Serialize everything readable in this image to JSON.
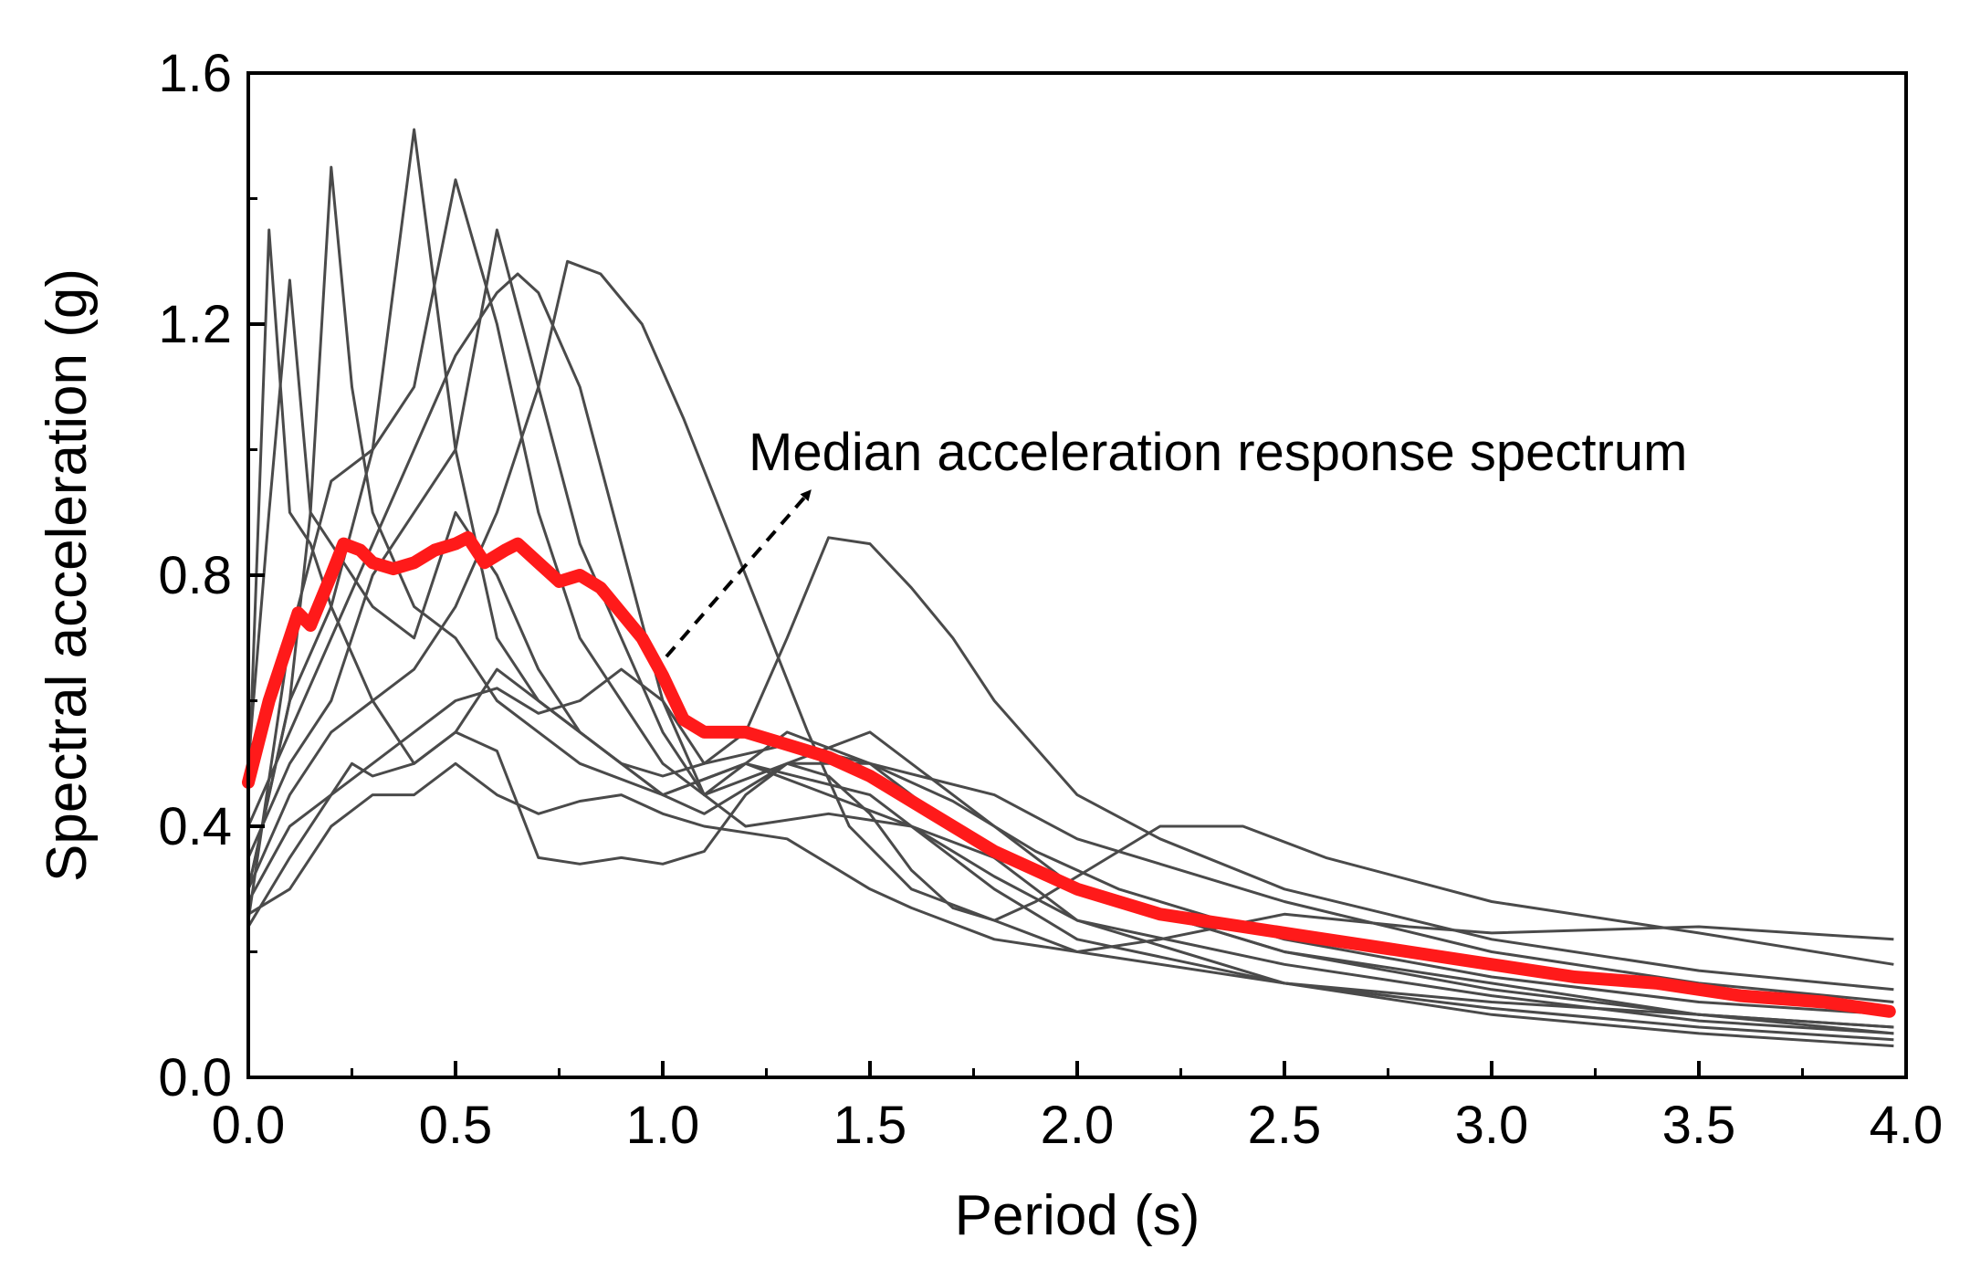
{
  "chart_data": {
    "type": "line",
    "xlabel": "Period (s)",
    "ylabel": "Spectral acceleration (g)",
    "xlim": [
      0,
      4
    ],
    "ylim": [
      0,
      1.6
    ],
    "xticks": [
      "0.0",
      "0.5",
      "1.0",
      "1.5",
      "2.0",
      "2.5",
      "3.0",
      "3.5",
      "4.0"
    ],
    "yticks": [
      "0.0",
      "0.4",
      "0.8",
      "1.2",
      "1.6"
    ],
    "grid": false,
    "annotation": {
      "text": "Median acceleration response spectrum",
      "arrow_from": [
        1.0,
        0.65
      ],
      "arrow_to": [
        1.35,
        0.93
      ]
    },
    "colors": {
      "records": "#4a4a4a",
      "median": "#ff1a1a"
    },
    "series": [
      {
        "values": [
          [
            0.0,
            0.45
          ],
          [
            0.05,
            1.35
          ],
          [
            0.1,
            0.9
          ],
          [
            0.15,
            0.85
          ],
          [
            0.2,
            0.75
          ],
          [
            0.3,
            0.6
          ],
          [
            0.4,
            0.5
          ],
          [
            0.5,
            0.55
          ],
          [
            0.6,
            0.65
          ],
          [
            0.7,
            0.6
          ],
          [
            0.8,
            0.55
          ],
          [
            0.9,
            0.5
          ],
          [
            1.0,
            0.45
          ],
          [
            1.2,
            0.5
          ],
          [
            1.4,
            0.45
          ],
          [
            1.6,
            0.4
          ],
          [
            1.8,
            0.32
          ],
          [
            2.0,
            0.25
          ],
          [
            2.5,
            0.15
          ],
          [
            3.0,
            0.11
          ],
          [
            3.5,
            0.08
          ],
          [
            3.97,
            0.06
          ]
        ]
      },
      {
        "values": [
          [
            0.0,
            0.5
          ],
          [
            0.05,
            0.9
          ],
          [
            0.1,
            1.27
          ],
          [
            0.15,
            0.9
          ],
          [
            0.2,
            1.45
          ],
          [
            0.25,
            1.1
          ],
          [
            0.3,
            0.9
          ],
          [
            0.4,
            0.75
          ],
          [
            0.5,
            0.7
          ],
          [
            0.6,
            0.6
          ],
          [
            0.7,
            0.55
          ],
          [
            0.8,
            0.5
          ],
          [
            1.0,
            0.45
          ],
          [
            1.2,
            0.5
          ],
          [
            1.5,
            0.45
          ],
          [
            1.8,
            0.3
          ],
          [
            2.0,
            0.22
          ],
          [
            2.5,
            0.15
          ],
          [
            3.0,
            0.1
          ],
          [
            3.5,
            0.07
          ],
          [
            3.97,
            0.05
          ]
        ]
      },
      {
        "values": [
          [
            0.0,
            0.3
          ],
          [
            0.1,
            0.6
          ],
          [
            0.2,
            0.75
          ],
          [
            0.3,
            1.0
          ],
          [
            0.4,
            1.51
          ],
          [
            0.5,
            1.0
          ],
          [
            0.6,
            0.7
          ],
          [
            0.7,
            0.6
          ],
          [
            0.8,
            0.55
          ],
          [
            0.9,
            0.5
          ],
          [
            1.0,
            0.45
          ],
          [
            1.1,
            0.42
          ],
          [
            1.3,
            0.5
          ],
          [
            1.5,
            0.55
          ],
          [
            1.7,
            0.45
          ],
          [
            2.0,
            0.3
          ],
          [
            2.5,
            0.2
          ],
          [
            3.0,
            0.14
          ],
          [
            3.5,
            0.1
          ],
          [
            3.97,
            0.07
          ]
        ]
      },
      {
        "values": [
          [
            0.0,
            0.25
          ],
          [
            0.1,
            0.7
          ],
          [
            0.2,
            0.95
          ],
          [
            0.3,
            1.0
          ],
          [
            0.4,
            1.1
          ],
          [
            0.5,
            1.43
          ],
          [
            0.6,
            1.2
          ],
          [
            0.7,
            0.9
          ],
          [
            0.8,
            0.7
          ],
          [
            0.9,
            0.6
          ],
          [
            1.0,
            0.5
          ],
          [
            1.1,
            0.45
          ],
          [
            1.3,
            0.55
          ],
          [
            1.5,
            0.5
          ],
          [
            1.8,
            0.35
          ],
          [
            2.0,
            0.3
          ],
          [
            2.5,
            0.2
          ],
          [
            3.0,
            0.15
          ],
          [
            3.5,
            0.1
          ],
          [
            3.97,
            0.08
          ]
        ]
      },
      {
        "values": [
          [
            0.0,
            0.35
          ],
          [
            0.1,
            0.5
          ],
          [
            0.2,
            0.6
          ],
          [
            0.3,
            0.8
          ],
          [
            0.4,
            0.9
          ],
          [
            0.5,
            1.0
          ],
          [
            0.6,
            1.35
          ],
          [
            0.7,
            1.1
          ],
          [
            0.8,
            0.85
          ],
          [
            0.9,
            0.7
          ],
          [
            1.0,
            0.55
          ],
          [
            1.1,
            0.45
          ],
          [
            1.2,
            0.4
          ],
          [
            1.4,
            0.42
          ],
          [
            1.6,
            0.4
          ],
          [
            1.8,
            0.35
          ],
          [
            2.0,
            0.25
          ],
          [
            2.5,
            0.18
          ],
          [
            3.0,
            0.13
          ],
          [
            3.5,
            0.09
          ],
          [
            3.97,
            0.07
          ]
        ]
      },
      {
        "values": [
          [
            0.0,
            0.4
          ],
          [
            0.1,
            0.55
          ],
          [
            0.2,
            0.7
          ],
          [
            0.3,
            0.85
          ],
          [
            0.4,
            1.0
          ],
          [
            0.5,
            1.15
          ],
          [
            0.6,
            1.25
          ],
          [
            0.65,
            1.28
          ],
          [
            0.7,
            1.25
          ],
          [
            0.8,
            1.1
          ],
          [
            0.9,
            0.85
          ],
          [
            1.0,
            0.6
          ],
          [
            1.1,
            0.45
          ],
          [
            1.3,
            0.5
          ],
          [
            1.5,
            0.5
          ],
          [
            1.8,
            0.45
          ],
          [
            2.0,
            0.38
          ],
          [
            2.5,
            0.28
          ],
          [
            3.0,
            0.2
          ],
          [
            3.5,
            0.15
          ],
          [
            3.97,
            0.12
          ]
        ]
      },
      {
        "values": [
          [
            0.0,
            0.3
          ],
          [
            0.1,
            0.45
          ],
          [
            0.2,
            0.55
          ],
          [
            0.3,
            0.6
          ],
          [
            0.4,
            0.65
          ],
          [
            0.5,
            0.75
          ],
          [
            0.6,
            0.9
          ],
          [
            0.7,
            1.1
          ],
          [
            0.77,
            1.3
          ],
          [
            0.85,
            1.28
          ],
          [
            0.95,
            1.2
          ],
          [
            1.05,
            1.05
          ],
          [
            1.2,
            0.8
          ],
          [
            1.35,
            0.55
          ],
          [
            1.45,
            0.4
          ],
          [
            1.6,
            0.3
          ],
          [
            1.8,
            0.25
          ],
          [
            2.0,
            0.2
          ],
          [
            2.5,
            0.15
          ],
          [
            3.0,
            0.12
          ],
          [
            3.5,
            0.1
          ],
          [
            3.97,
            0.08
          ]
        ]
      },
      {
        "values": [
          [
            0.0,
            0.28
          ],
          [
            0.1,
            0.4
          ],
          [
            0.2,
            0.45
          ],
          [
            0.3,
            0.5
          ],
          [
            0.4,
            0.55
          ],
          [
            0.5,
            0.6
          ],
          [
            0.6,
            0.62
          ],
          [
            0.7,
            0.58
          ],
          [
            0.8,
            0.6
          ],
          [
            0.9,
            0.65
          ],
          [
            1.0,
            0.6
          ],
          [
            1.1,
            0.5
          ],
          [
            1.2,
            0.55
          ],
          [
            1.3,
            0.7
          ],
          [
            1.4,
            0.86
          ],
          [
            1.5,
            0.85
          ],
          [
            1.6,
            0.78
          ],
          [
            1.7,
            0.7
          ],
          [
            1.8,
            0.6
          ],
          [
            2.0,
            0.45
          ],
          [
            2.2,
            0.38
          ],
          [
            2.5,
            0.3
          ],
          [
            3.0,
            0.22
          ],
          [
            3.5,
            0.17
          ],
          [
            3.97,
            0.14
          ]
        ]
      },
      {
        "values": [
          [
            0.0,
            0.24
          ],
          [
            0.1,
            0.35
          ],
          [
            0.2,
            0.45
          ],
          [
            0.25,
            0.5
          ],
          [
            0.3,
            0.48
          ],
          [
            0.4,
            0.5
          ],
          [
            0.5,
            0.55
          ],
          [
            0.6,
            0.52
          ],
          [
            0.7,
            0.35
          ],
          [
            0.8,
            0.34
          ],
          [
            0.9,
            0.35
          ],
          [
            1.0,
            0.34
          ],
          [
            1.1,
            0.36
          ],
          [
            1.2,
            0.45
          ],
          [
            1.3,
            0.5
          ],
          [
            1.4,
            0.48
          ],
          [
            1.5,
            0.42
          ],
          [
            1.6,
            0.33
          ],
          [
            1.7,
            0.27
          ],
          [
            1.8,
            0.25
          ],
          [
            1.9,
            0.28
          ],
          [
            2.0,
            0.32
          ],
          [
            2.2,
            0.4
          ],
          [
            2.4,
            0.4
          ],
          [
            2.6,
            0.35
          ],
          [
            3.0,
            0.28
          ],
          [
            3.5,
            0.23
          ],
          [
            3.97,
            0.18
          ]
        ]
      },
      {
        "values": [
          [
            0.0,
            0.26
          ],
          [
            0.1,
            0.3
          ],
          [
            0.2,
            0.4
          ],
          [
            0.3,
            0.45
          ],
          [
            0.4,
            0.45
          ],
          [
            0.5,
            0.5
          ],
          [
            0.6,
            0.45
          ],
          [
            0.7,
            0.42
          ],
          [
            0.8,
            0.44
          ],
          [
            0.9,
            0.45
          ],
          [
            1.0,
            0.42
          ],
          [
            1.1,
            0.4
          ],
          [
            1.3,
            0.38
          ],
          [
            1.5,
            0.3
          ],
          [
            1.6,
            0.27
          ],
          [
            1.8,
            0.22
          ],
          [
            2.0,
            0.2
          ],
          [
            2.2,
            0.22
          ],
          [
            2.5,
            0.26
          ],
          [
            2.8,
            0.24
          ],
          [
            3.0,
            0.23
          ],
          [
            3.5,
            0.24
          ],
          [
            3.97,
            0.22
          ]
        ]
      },
      {
        "values": [
          [
            0.0,
            0.3
          ],
          [
            0.1,
            0.6
          ],
          [
            0.15,
            0.9
          ],
          [
            0.2,
            0.85
          ],
          [
            0.3,
            0.75
          ],
          [
            0.4,
            0.7
          ],
          [
            0.5,
            0.9
          ],
          [
            0.6,
            0.8
          ],
          [
            0.7,
            0.65
          ],
          [
            0.8,
            0.55
          ],
          [
            0.9,
            0.5
          ],
          [
            1.0,
            0.48
          ],
          [
            1.1,
            0.5
          ],
          [
            1.3,
            0.53
          ],
          [
            1.5,
            0.5
          ],
          [
            1.7,
            0.44
          ],
          [
            1.9,
            0.36
          ],
          [
            2.1,
            0.3
          ],
          [
            2.5,
            0.22
          ],
          [
            3.0,
            0.16
          ],
          [
            3.5,
            0.12
          ],
          [
            3.97,
            0.1
          ]
        ]
      }
    ],
    "median": [
      [
        0.0,
        0.47
      ],
      [
        0.05,
        0.6
      ],
      [
        0.1,
        0.7
      ],
      [
        0.12,
        0.74
      ],
      [
        0.15,
        0.72
      ],
      [
        0.2,
        0.8
      ],
      [
        0.23,
        0.85
      ],
      [
        0.27,
        0.84
      ],
      [
        0.3,
        0.82
      ],
      [
        0.35,
        0.81
      ],
      [
        0.4,
        0.82
      ],
      [
        0.45,
        0.84
      ],
      [
        0.5,
        0.85
      ],
      [
        0.53,
        0.86
      ],
      [
        0.57,
        0.82
      ],
      [
        0.62,
        0.84
      ],
      [
        0.65,
        0.85
      ],
      [
        0.7,
        0.82
      ],
      [
        0.75,
        0.79
      ],
      [
        0.8,
        0.8
      ],
      [
        0.85,
        0.78
      ],
      [
        0.9,
        0.74
      ],
      [
        0.95,
        0.7
      ],
      [
        1.0,
        0.64
      ],
      [
        1.05,
        0.57
      ],
      [
        1.1,
        0.55
      ],
      [
        1.2,
        0.55
      ],
      [
        1.3,
        0.53
      ],
      [
        1.4,
        0.51
      ],
      [
        1.5,
        0.48
      ],
      [
        1.6,
        0.44
      ],
      [
        1.7,
        0.4
      ],
      [
        1.8,
        0.36
      ],
      [
        1.9,
        0.33
      ],
      [
        2.0,
        0.3
      ],
      [
        2.2,
        0.26
      ],
      [
        2.4,
        0.24
      ],
      [
        2.6,
        0.22
      ],
      [
        2.8,
        0.2
      ],
      [
        3.0,
        0.18
      ],
      [
        3.2,
        0.16
      ],
      [
        3.4,
        0.15
      ],
      [
        3.6,
        0.13
      ],
      [
        3.8,
        0.12
      ],
      [
        3.96,
        0.105
      ]
    ]
  }
}
